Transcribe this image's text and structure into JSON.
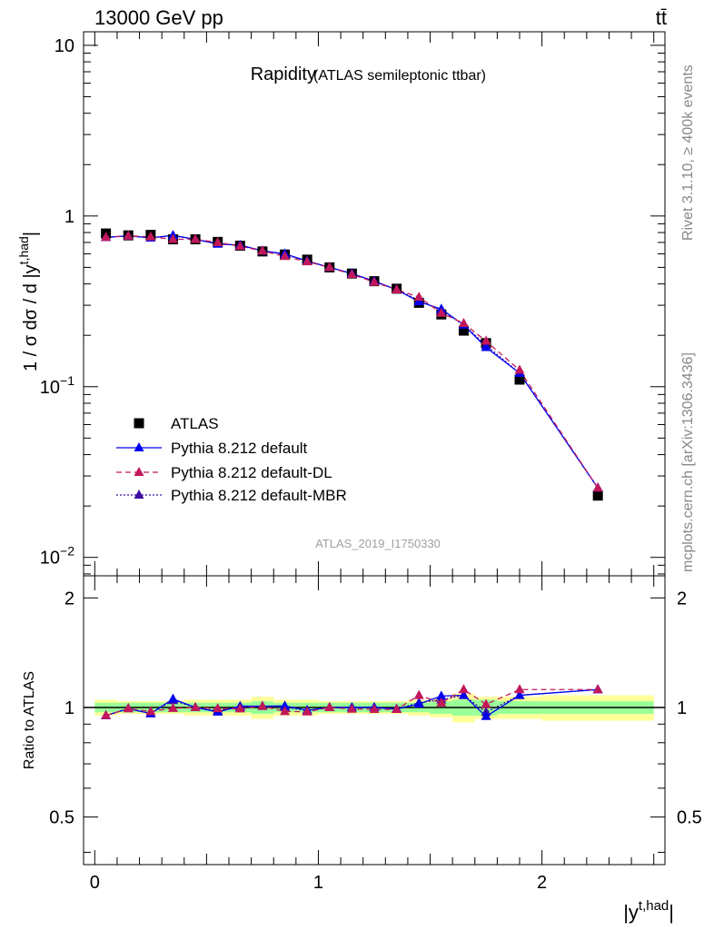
{
  "header": {
    "left": "13000 GeV pp",
    "right": "tt̄"
  },
  "side": {
    "rivet": "Rivet 3.1.10, ≥ 400k events",
    "mcplots": "mcplots.cern.ch [arXiv:1306.3436]"
  },
  "watermark": "ATLAS_2019_I1750330",
  "chart_data": [
    {
      "type": "scatter",
      "title": "Rapidity",
      "subtitle": "(ATLAS semileptonic ttbar)",
      "ylabel": "1 / σ dσ / d |y",
      "ylabel_sup": "t,had",
      "ylabel_end": "|",
      "yscale": "log",
      "ylim": [
        0.0078,
        12
      ],
      "xlim": [
        -0.05,
        2.55
      ],
      "yticks": [
        {
          "v": 10,
          "label": "10"
        },
        {
          "v": 1,
          "label": "1"
        },
        {
          "v": 0.1,
          "label": "10",
          "sup": "−1"
        },
        {
          "v": 0.01,
          "label": "10",
          "sup": "−2"
        }
      ],
      "x_bins": [
        0.05,
        0.15,
        0.25,
        0.35,
        0.45,
        0.55,
        0.65,
        0.75,
        0.85,
        0.95,
        1.05,
        1.15,
        1.25,
        1.35,
        1.45,
        1.55,
        1.65,
        1.75,
        1.9,
        2.25
      ],
      "bin_edges": [
        0.0,
        0.1,
        0.2,
        0.3,
        0.4,
        0.5,
        0.6,
        0.7,
        0.8,
        0.9,
        1.0,
        1.1,
        1.2,
        1.3,
        1.4,
        1.5,
        1.6,
        1.7,
        1.8,
        2.0,
        2.5
      ],
      "series": [
        {
          "name": "ATLAS",
          "marker": "square",
          "color": "#000000",
          "values": [
            0.79,
            0.77,
            0.775,
            0.73,
            0.73,
            0.705,
            0.67,
            0.62,
            0.595,
            0.555,
            0.5,
            0.46,
            0.415,
            0.375,
            0.31,
            0.265,
            0.213,
            0.18,
            0.11,
            0.023
          ]
        },
        {
          "name": "Pythia 8.212 default",
          "marker": "triangle",
          "color": "#0000ee",
          "line": "solid",
          "values": [
            0.75,
            0.765,
            0.745,
            0.77,
            0.73,
            0.685,
            0.675,
            0.625,
            0.6,
            0.545,
            0.5,
            0.46,
            0.415,
            0.37,
            0.315,
            0.285,
            0.23,
            0.17,
            0.12,
            0.0255
          ]
        },
        {
          "name": "Pythia 8.212 default-DL",
          "marker": "triangle",
          "color": "#c2185b",
          "line": "dashed",
          "values": [
            0.75,
            0.765,
            0.755,
            0.73,
            0.73,
            0.7,
            0.665,
            0.625,
            0.58,
            0.54,
            0.5,
            0.455,
            0.41,
            0.37,
            0.335,
            0.27,
            0.235,
            0.185,
            0.125,
            0.0255
          ]
        },
        {
          "name": "Pythia 8.212 default-MBR",
          "marker": "triangle",
          "color": "#3a0ca3",
          "line": "dotted",
          "values": [
            0.75,
            0.765,
            0.745,
            0.765,
            0.73,
            0.69,
            0.67,
            0.625,
            0.595,
            0.545,
            0.5,
            0.46,
            0.415,
            0.37,
            0.32,
            0.28,
            0.23,
            0.175,
            0.12,
            0.0255
          ]
        }
      ]
    },
    {
      "type": "scatter",
      "ylabel": "Ratio to ATLAS",
      "xlabel": "|y",
      "xlabel_sup": "t,had",
      "xlabel_end": "|",
      "ylim": [
        0.37,
        2.3
      ],
      "yscale": "log",
      "yticks": [
        {
          "v": 2,
          "label": "2"
        },
        {
          "v": 1,
          "label": "1"
        },
        {
          "v": 0.5,
          "label": "0.5"
        }
      ],
      "xticks": [
        {
          "v": 0,
          "label": "0"
        },
        {
          "v": 1,
          "label": "1"
        },
        {
          "v": 2,
          "label": "2"
        }
      ],
      "band_stat": [
        0.03,
        0.03,
        0.03,
        0.03,
        0.03,
        0.03,
        0.03,
        0.04,
        0.03,
        0.03,
        0.03,
        0.03,
        0.03,
        0.03,
        0.03,
        0.04,
        0.05,
        0.05,
        0.04,
        0.04
      ],
      "band_syst": [
        0.05,
        0.04,
        0.04,
        0.04,
        0.05,
        0.05,
        0.05,
        0.07,
        0.05,
        0.05,
        0.04,
        0.04,
        0.04,
        0.04,
        0.05,
        0.06,
        0.09,
        0.07,
        0.07,
        0.08
      ],
      "series": [
        {
          "name": "Pythia 8.212 default",
          "color": "#0000ee",
          "line": "solid",
          "values": [
            0.95,
            0.993,
            0.962,
            1.055,
            1.0,
            0.972,
            1.008,
            1.008,
            1.01,
            0.982,
            1.0,
            1.0,
            1.0,
            0.99,
            1.022,
            1.075,
            1.08,
            0.945,
            1.08,
            1.12
          ]
        },
        {
          "name": "Pythia 8.212 default-DL",
          "color": "#c2185b",
          "line": "dashed",
          "values": [
            0.95,
            0.993,
            0.975,
            0.995,
            1.0,
            0.993,
            0.992,
            1.008,
            0.975,
            0.973,
            1.0,
            0.99,
            0.988,
            0.988,
            1.08,
            1.03,
            1.12,
            1.02,
            1.12,
            1.12
          ]
        },
        {
          "name": "Pythia 8.212 default-MBR",
          "color": "#3a0ca3",
          "line": "dotted",
          "values": [
            0.95,
            0.993,
            0.962,
            1.045,
            1.0,
            0.98,
            1.0,
            1.008,
            1.0,
            0.982,
            1.0,
            1.0,
            1.0,
            0.99,
            1.03,
            1.05,
            1.08,
            0.97,
            1.08,
            1.12
          ]
        }
      ]
    }
  ]
}
